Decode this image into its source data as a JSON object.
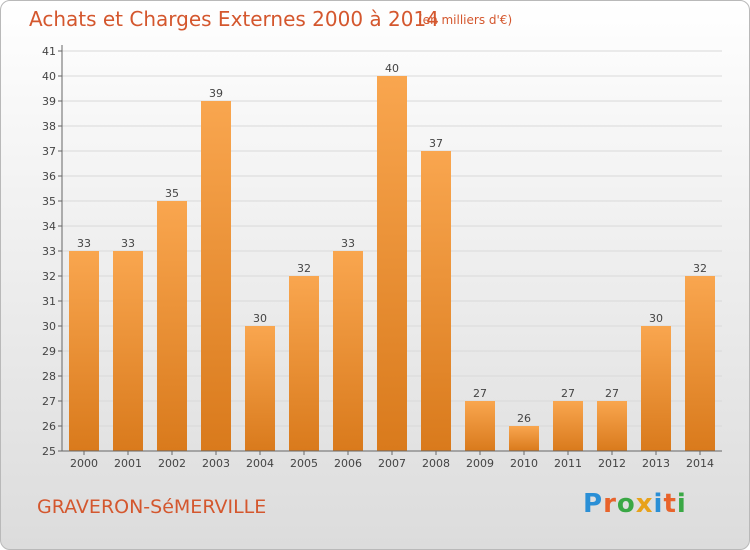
{
  "title": "Achats et Charges Externes 2000 à 2014",
  "subtitle": "(en milliers d'€)",
  "town": "GRAVERON-SéMERVILLE",
  "logo": "Proxiti",
  "colors": {
    "title": "#d4572e",
    "bar_light": "#f9a64f",
    "bar_dark": "#d97a1c",
    "grid": "#d9d9d9"
  },
  "chart_data": {
    "type": "bar",
    "categories": [
      "2000",
      "2001",
      "2002",
      "2003",
      "2004",
      "2005",
      "2006",
      "2007",
      "2008",
      "2009",
      "2010",
      "2011",
      "2012",
      "2013",
      "2014"
    ],
    "values": [
      33,
      33,
      35,
      39,
      30,
      32,
      33,
      40,
      37,
      27,
      26,
      27,
      27,
      30,
      32
    ],
    "ylim": [
      25,
      41
    ],
    "yticks": [
      25,
      26,
      27,
      28,
      29,
      30,
      31,
      32,
      33,
      34,
      35,
      36,
      37,
      38,
      39,
      40,
      41
    ],
    "grid": true
  }
}
